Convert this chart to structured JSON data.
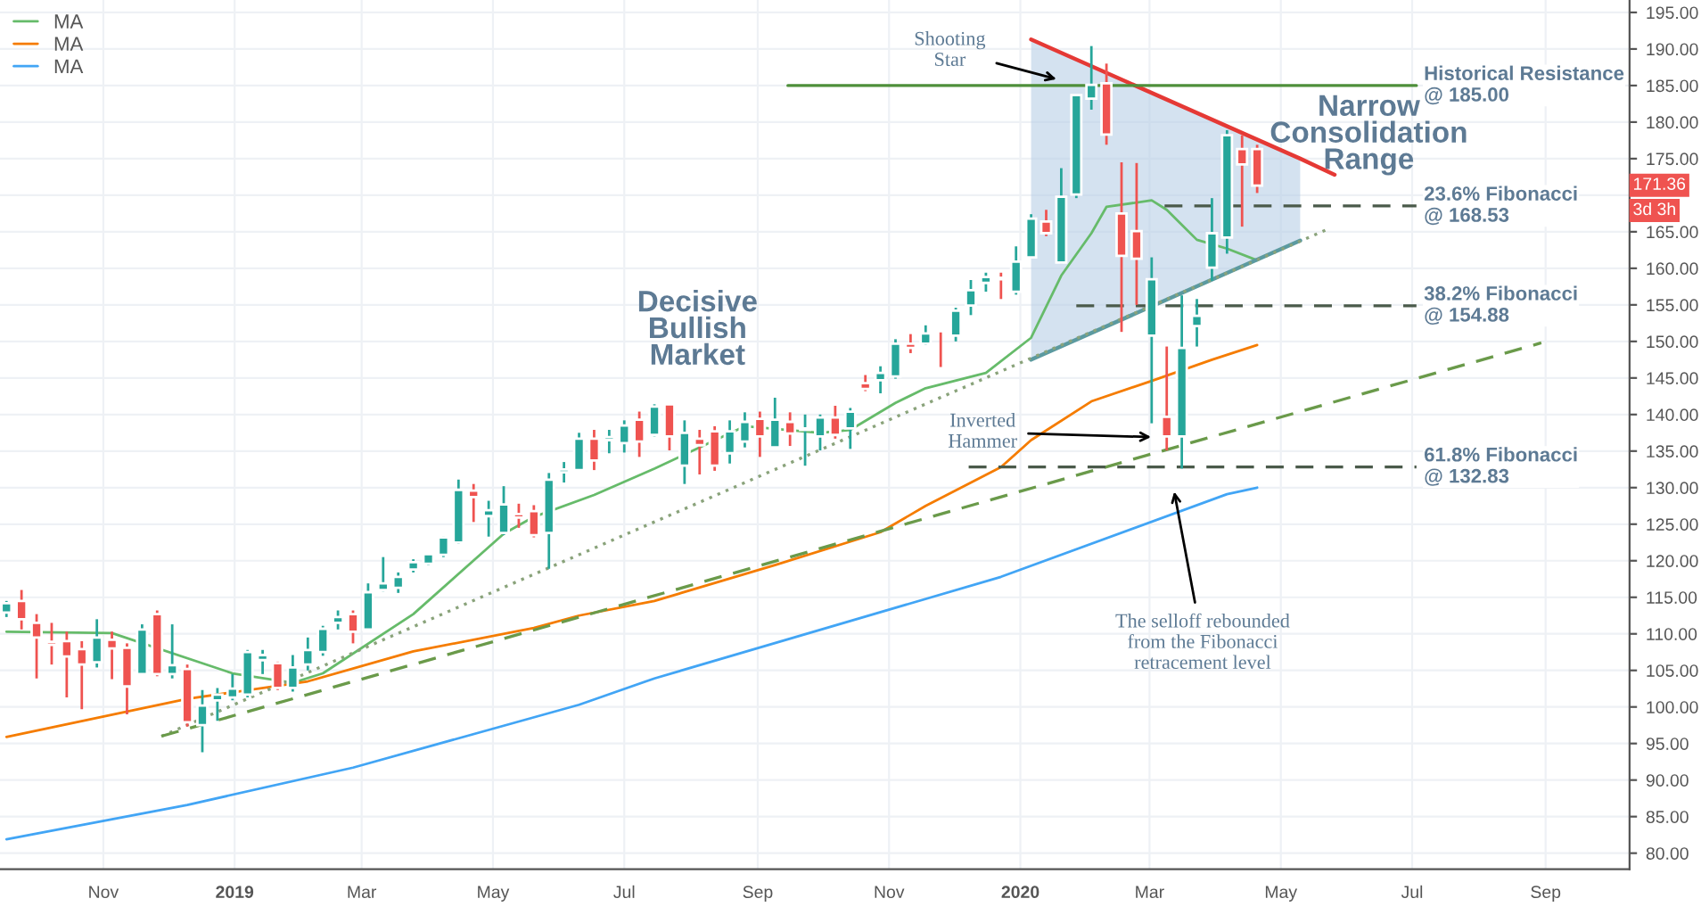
{
  "chart_data": {
    "type": "candlestick",
    "x": [
      "2018-09-17",
      "2018-09-24",
      "2018-10-01",
      "2018-10-08",
      "2018-10-15",
      "2018-10-22",
      "2018-10-29",
      "2018-11-05",
      "2018-11-12",
      "2018-11-19",
      "2018-11-26",
      "2018-12-03",
      "2018-12-10",
      "2018-12-17",
      "2018-12-24",
      "2018-12-31",
      "2019-01-07",
      "2019-01-14",
      "2019-01-21",
      "2019-01-28",
      "2019-02-04",
      "2019-02-11",
      "2019-02-18",
      "2019-02-25",
      "2019-03-04",
      "2019-03-11",
      "2019-03-18",
      "2019-03-25",
      "2019-04-01",
      "2019-04-08",
      "2019-04-15",
      "2019-04-22",
      "2019-04-29",
      "2019-05-06",
      "2019-05-13",
      "2019-05-20",
      "2019-05-27",
      "2019-06-03",
      "2019-06-10",
      "2019-06-17",
      "2019-06-24",
      "2019-07-01",
      "2019-07-08",
      "2019-07-15",
      "2019-07-22",
      "2019-07-29",
      "2019-08-05",
      "2019-08-12",
      "2019-08-19",
      "2019-08-26",
      "2019-09-02",
      "2019-09-09",
      "2019-09-16",
      "2019-09-23",
      "2019-09-30",
      "2019-10-07",
      "2019-10-14",
      "2019-10-21",
      "2019-10-28",
      "2019-11-04",
      "2019-11-11",
      "2019-11-18",
      "2019-11-25",
      "2019-12-02",
      "2019-12-09",
      "2019-12-16",
      "2019-12-23",
      "2019-12-30",
      "2020-01-06",
      "2020-01-13",
      "2020-01-20",
      "2020-01-27",
      "2020-02-03",
      "2020-02-10",
      "2020-02-17",
      "2020-02-24",
      "2020-03-02",
      "2020-03-09",
      "2020-03-16",
      "2020-03-23",
      "2020-03-30",
      "2020-04-06",
      "2020-04-13",
      "2020-04-20"
    ],
    "ohlc": [
      [
        112.9,
        114.5,
        112.3,
        114.2
      ],
      [
        114.5,
        116.0,
        110.6,
        112.0
      ],
      [
        111.5,
        112.7,
        103.9,
        109.5
      ],
      [
        108.9,
        111.5,
        105.8,
        108.5
      ],
      [
        109.0,
        110.3,
        101.3,
        106.9
      ],
      [
        107.9,
        109.0,
        99.7,
        105.8
      ],
      [
        106.1,
        112.0,
        105.4,
        109.5
      ],
      [
        109.2,
        110.3,
        103.8,
        108.0
      ],
      [
        108.1,
        108.7,
        99.0,
        102.8
      ],
      [
        104.5,
        111.3,
        104.4,
        110.6
      ],
      [
        112.7,
        113.2,
        104.2,
        104.5
      ],
      [
        104.5,
        111.3,
        103.9,
        105.7
      ],
      [
        105.2,
        105.8,
        97.3,
        97.9
      ],
      [
        97.5,
        102.3,
        93.8,
        100.2
      ],
      [
        100.9,
        102.6,
        98.1,
        101.7
      ],
      [
        101.3,
        104.5,
        100.9,
        102.5
      ],
      [
        101.7,
        107.8,
        101.3,
        107.5
      ],
      [
        106.4,
        107.8,
        104.5,
        107.1
      ],
      [
        106.0,
        106.2,
        102.3,
        102.6
      ],
      [
        102.6,
        107.1,
        102.1,
        105.4
      ],
      [
        105.8,
        109.5,
        105.0,
        107.8
      ],
      [
        107.5,
        111.1,
        107.0,
        110.7
      ],
      [
        111.5,
        113.2,
        110.6,
        112.3
      ],
      [
        112.7,
        113.2,
        108.7,
        110.3
      ],
      [
        110.6,
        116.9,
        110.5,
        115.7
      ],
      [
        116.0,
        120.5,
        115.8,
        116.9
      ],
      [
        116.3,
        118.4,
        115.6,
        117.8
      ],
      [
        118.8,
        120.2,
        118.4,
        119.8
      ],
      [
        119.6,
        121.0,
        119.4,
        120.9
      ],
      [
        120.8,
        123.3,
        120.5,
        123.2
      ],
      [
        122.5,
        131.1,
        122.3,
        129.7
      ],
      [
        129.6,
        130.5,
        125.3,
        128.7
      ],
      [
        126.1,
        128.2,
        123.3,
        126.9
      ],
      [
        123.8,
        130.2,
        123.5,
        127.7
      ],
      [
        126.4,
        127.8,
        124.5,
        125.9
      ],
      [
        126.8,
        127.6,
        123.2,
        123.5
      ],
      [
        123.8,
        132.0,
        118.9,
        131.1
      ],
      [
        132.1,
        133.5,
        130.7,
        132.5
      ],
      [
        132.4,
        137.5,
        132.3,
        136.7
      ],
      [
        136.7,
        137.9,
        132.4,
        133.7
      ],
      [
        136.5,
        137.9,
        134.7,
        136.9
      ],
      [
        136.1,
        139.2,
        134.8,
        138.5
      ],
      [
        139.3,
        140.4,
        134.2,
        136.3
      ],
      [
        137.2,
        141.4,
        137.0,
        141.1
      ],
      [
        141.4,
        141.4,
        135.1,
        137.0
      ],
      [
        133.0,
        139.2,
        130.5,
        137.5
      ],
      [
        136.7,
        137.9,
        131.8,
        135.8
      ],
      [
        137.7,
        138.4,
        132.3,
        133.0
      ],
      [
        134.7,
        139.2,
        133.3,
        137.7
      ],
      [
        136.3,
        140.3,
        135.5,
        139.0
      ],
      [
        139.4,
        140.4,
        134.2,
        137.0
      ],
      [
        135.5,
        142.3,
        135.4,
        139.3
      ],
      [
        139.0,
        140.3,
        135.7,
        137.4
      ],
      [
        137.9,
        140.0,
        133.0,
        138.1
      ],
      [
        137.0,
        140.0,
        135.1,
        139.6
      ],
      [
        139.6,
        141.2,
        136.7,
        137.2
      ],
      [
        138.1,
        140.9,
        135.3,
        140.4
      ],
      [
        144.3,
        145.4,
        143.2,
        143.5
      ],
      [
        144.7,
        146.6,
        142.9,
        145.7
      ],
      [
        145.2,
        150.3,
        144.9,
        149.7
      ],
      [
        149.7,
        151.0,
        148.4,
        149.1
      ],
      [
        149.7,
        152.2,
        149.5,
        151.1
      ],
      [
        151.7,
        151.7,
        146.5,
        151.4
      ],
      [
        150.8,
        154.6,
        150.0,
        154.2
      ],
      [
        154.9,
        158.4,
        153.6,
        157.0
      ],
      [
        158.0,
        159.4,
        156.8,
        158.8
      ],
      [
        158.7,
        159.4,
        155.8,
        158.5
      ],
      [
        156.8,
        163.0,
        156.4,
        160.9
      ],
      [
        161.5,
        167.4,
        161.4,
        166.8
      ],
      [
        166.4,
        168.0,
        164.4,
        164.8
      ],
      [
        160.8,
        173.7,
        160.7,
        169.8
      ],
      [
        170.1,
        183.7,
        169.6,
        183.7
      ],
      [
        183.2,
        190.4,
        181.7,
        185.1
      ],
      [
        185.3,
        188.0,
        176.9,
        178.3
      ],
      [
        167.5,
        174.5,
        151.3,
        161.7
      ],
      [
        165.1,
        174.4,
        155.0,
        161.3
      ],
      [
        150.8,
        161.5,
        138.8,
        158.5
      ],
      [
        139.7,
        149.3,
        135.1,
        137.0
      ],
      [
        137.0,
        156.3,
        132.6,
        149.1
      ],
      [
        152.1,
        155.8,
        149.3,
        153.5
      ],
      [
        160.1,
        169.6,
        158.3,
        164.8
      ],
      [
        164.2,
        178.9,
        162.0,
        178.2
      ],
      [
        176.3,
        178.2,
        165.7,
        174.2
      ],
      [
        176.3,
        176.9,
        170.3,
        171.3
      ]
    ],
    "colors": [
      "#26a69a",
      "#ef5350",
      "#ef5350",
      "#ef5350",
      "#ef5350",
      "#ef5350",
      "#26a69a",
      "#ef5350",
      "#ef5350",
      "#26a69a",
      "#ef5350",
      "#26a69a",
      "#ef5350",
      "#26a69a",
      "#26a69a",
      "#26a69a",
      "#26a69a",
      "#26a69a",
      "#ef5350",
      "#26a69a",
      "#26a69a",
      "#26a69a",
      "#26a69a",
      "#ef5350",
      "#26a69a",
      "#26a69a",
      "#26a69a",
      "#26a69a",
      "#26a69a",
      "#26a69a",
      "#26a69a",
      "#ef5350",
      "#26a69a",
      "#26a69a",
      "#ef5350",
      "#ef5350",
      "#26a69a",
      "#26a69a",
      "#26a69a",
      "#ef5350",
      "#26a69a",
      "#26a69a",
      "#ef5350",
      "#26a69a",
      "#ef5350",
      "#26a69a",
      "#ef5350",
      "#ef5350",
      "#26a69a",
      "#26a69a",
      "#ef5350",
      "#26a69a",
      "#ef5350",
      "#26a69a",
      "#26a69a",
      "#ef5350",
      "#26a69a",
      "#ef5350",
      "#26a69a",
      "#26a69a",
      "#ef5350",
      "#26a69a",
      "#ef5350",
      "#26a69a",
      "#26a69a",
      "#26a69a",
      "#ef5350",
      "#26a69a",
      "#26a69a",
      "#ef5350",
      "#26a69a",
      "#26a69a",
      "#26a69a",
      "#ef5350",
      "#ef5350",
      "#ef5350",
      "#26a69a",
      "#ef5350",
      "#26a69a",
      "#26a69a",
      "#26a69a",
      "#26a69a",
      "#ef5350",
      "#ef5350"
    ],
    "series": [
      {
        "type": "line",
        "name": "MA",
        "color": "#66bb6a",
        "x": [
          "2018-09-17",
          "2018-11-05",
          "2018-12-31",
          "2019-01-28",
          "2019-02-11",
          "2019-03-25",
          "2019-05-06",
          "2019-05-20",
          "2019-06-17",
          "2019-07-15",
          "2019-08-26",
          "2019-09-30",
          "2019-10-14",
          "2019-11-04",
          "2019-11-18",
          "2019-12-16",
          "2020-01-06",
          "2020-01-20",
          "2020-02-03",
          "2020-02-10",
          "2020-03-02",
          "2020-03-09",
          "2020-03-23",
          "2020-04-06",
          "2020-04-20"
        ],
        "values": [
          110.3,
          110.1,
          104.6,
          103.3,
          104.6,
          112.7,
          123.7,
          126.0,
          129.0,
          132.6,
          138.4,
          137.5,
          137.9,
          141.6,
          143.6,
          145.7,
          150.5,
          159.0,
          164.8,
          168.4,
          169.3,
          168.0,
          163.9,
          162.7,
          161.1
        ]
      },
      {
        "type": "line",
        "name": "MA",
        "color": "#f57c00",
        "x": [
          "2018-09-17",
          "2018-12-10",
          "2019-02-04",
          "2019-03-25",
          "2019-05-20",
          "2019-06-10",
          "2019-07-15",
          "2019-09-09",
          "2019-10-28",
          "2019-11-18",
          "2019-12-23",
          "2020-01-06",
          "2020-02-03",
          "2020-03-02",
          "2020-03-30",
          "2020-04-20"
        ],
        "values": [
          95.9,
          101.1,
          103.5,
          107.6,
          110.8,
          112.5,
          114.5,
          119.4,
          123.9,
          127.5,
          132.8,
          136.5,
          141.8,
          144.6,
          147.5,
          149.5
        ]
      },
      {
        "type": "line",
        "name": "MA",
        "color": "#42a5f5",
        "x": [
          "2018-09-17",
          "2018-12-10",
          "2019-02-25",
          "2019-06-10",
          "2019-07-15",
          "2019-12-23",
          "2020-04-06",
          "2020-04-20"
        ],
        "values": [
          81.9,
          86.6,
          91.7,
          100.3,
          103.9,
          117.8,
          129.1,
          130.0
        ]
      },
      {
        "type": "line",
        "color": "#e53935",
        "line_style": "solid",
        "x": [
          "2020-01-06",
          "2020-05-10",
          "2020-05-26"
        ],
        "values": [
          191.3,
          175.0,
          172.8
        ]
      },
      {
        "type": "line",
        "color": "#5b9aa0",
        "line_style": "solid",
        "x": [
          "2020-01-06",
          "2020-05-10"
        ],
        "values": [
          147.5,
          163.8
        ]
      },
      {
        "type": "line",
        "color": "#8aa37b",
        "line_style": "dotted",
        "x": [
          "2018-11-28",
          "2020-05-24"
        ],
        "values": [
          96.0,
          165.5
        ]
      },
      {
        "type": "line",
        "color": "#6a9a4a",
        "line_style": "dashed",
        "x": [
          "2018-11-28",
          "2020-08-30"
        ],
        "values": [
          96.0,
          149.8
        ]
      },
      {
        "type": "line",
        "name": "Historical Resistance\n@ 185.00",
        "color": "#4e8f3a",
        "line_style": "solid",
        "x": [
          "2019-09-15",
          "2020-07-03"
        ],
        "values": [
          185.0,
          185.0
        ]
      },
      {
        "type": "line",
        "name": "23.6% Fibonacci\n@ 168.53",
        "color": "#4a5a4a",
        "line_style": "dashed",
        "x": [
          "2020-03-08",
          "2020-07-03"
        ],
        "values": [
          168.53,
          168.53
        ]
      },
      {
        "type": "line",
        "name": "38.2% Fibonacci\n@ 154.88",
        "color": "#4a5a4a",
        "line_style": "dashed",
        "x": [
          "2020-01-27",
          "2020-07-03"
        ],
        "values": [
          154.88,
          154.88
        ]
      },
      {
        "type": "line",
        "name": "61.8% Fibonacci\n@ 132.83",
        "color": "#4a5a4a",
        "line_style": "dashed",
        "x": [
          "2019-12-08",
          "2020-07-03"
        ],
        "values": [
          132.83,
          132.83
        ]
      }
    ],
    "annotations": [
      {
        "text": "Shooting\nStar",
        "x": "2020-01-20",
        "y": 185.7
      },
      {
        "text": "Inverted\nHammer",
        "x": "2020-03-04",
        "y": 136.9
      },
      "The selloff rebounded\nfrom the Fibonacci\nretracement level",
      "Narrow\nConsolidation\nRange",
      "Decisive\nBullish\nMarket",
      {
        "text": "171.36",
        "y": 171.36
      },
      "3d 3h"
    ],
    "xlim": [
      "2018-09-14",
      "2020-10-10"
    ],
    "xticks": [
      {
        "value": "2018-11-01",
        "label": "Nov"
      },
      {
        "value": "2019-01-01",
        "label": "2019"
      },
      {
        "value": "2019-03-01",
        "label": "Mar"
      },
      {
        "value": "2019-05-01",
        "label": "May"
      },
      {
        "value": "2019-07-01",
        "label": "Jul"
      },
      {
        "value": "2019-09-01",
        "label": "Sep"
      },
      {
        "value": "2019-11-01",
        "label": "Nov"
      },
      {
        "value": "2020-01-01",
        "label": "2020"
      },
      {
        "value": "2020-03-01",
        "label": "Mar"
      },
      {
        "value": "2020-05-01",
        "label": "May"
      },
      {
        "value": "2020-07-01",
        "label": "Jul"
      },
      {
        "value": "2020-09-01",
        "label": "Sep"
      }
    ],
    "ylim": [
      77.8,
      196.7
    ],
    "yticks": [
      {
        "value": 80,
        "label": "80.00"
      },
      {
        "value": 85,
        "label": "85.00"
      },
      {
        "value": 90,
        "label": "90.00"
      },
      {
        "value": 95,
        "label": "95.00"
      },
      {
        "value": 100,
        "label": "100.00"
      },
      {
        "value": 105,
        "label": "105.00"
      },
      {
        "value": 110,
        "label": "110.00"
      },
      {
        "value": 115,
        "label": "115.00"
      },
      {
        "value": 120,
        "label": "120.00"
      },
      {
        "value": 125,
        "label": "125.00"
      },
      {
        "value": 130,
        "label": "130.00"
      },
      {
        "value": 135,
        "label": "135.00"
      },
      {
        "value": 140,
        "label": "140.00"
      },
      {
        "value": 145,
        "label": "145.00"
      },
      {
        "value": 150,
        "label": "150.00"
      },
      {
        "value": 155,
        "label": "155.00"
      },
      {
        "value": 160,
        "label": "160.00"
      },
      {
        "value": 165,
        "label": "165.00"
      },
      {
        "value": 170,
        "label": null
      },
      {
        "value": 175,
        "label": "175.00"
      },
      {
        "value": 180,
        "label": "180.00"
      },
      {
        "value": 185,
        "label": "185.00"
      },
      {
        "value": 190,
        "label": "190.00"
      },
      {
        "value": 195,
        "label": "195.00"
      }
    ],
    "grid": true,
    "legend": "top left"
  }
}
